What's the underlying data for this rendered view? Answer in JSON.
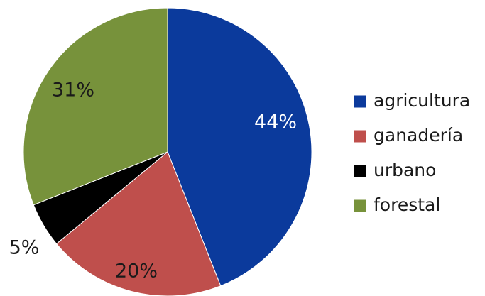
{
  "chart_data": {
    "type": "pie",
    "title": "",
    "slices": [
      {
        "label": "agricultura",
        "value": 44,
        "display": "44%",
        "color": "#0b3a9c",
        "label_color": "#ffffff"
      },
      {
        "label": "ganadería",
        "value": 20,
        "display": "20%",
        "color": "#bf4f4c",
        "label_color": "#1a1a1a"
      },
      {
        "label": "urbano",
        "value": 5,
        "display": "5%",
        "color": "#000000",
        "label_color": "#1a1a1a"
      },
      {
        "label": "forestal",
        "value": 31,
        "display": "31%",
        "color": "#77923b",
        "label_color": "#1a1a1a"
      }
    ],
    "start_angle": "12 o'clock",
    "direction": "clockwise",
    "legend_position": "right"
  }
}
